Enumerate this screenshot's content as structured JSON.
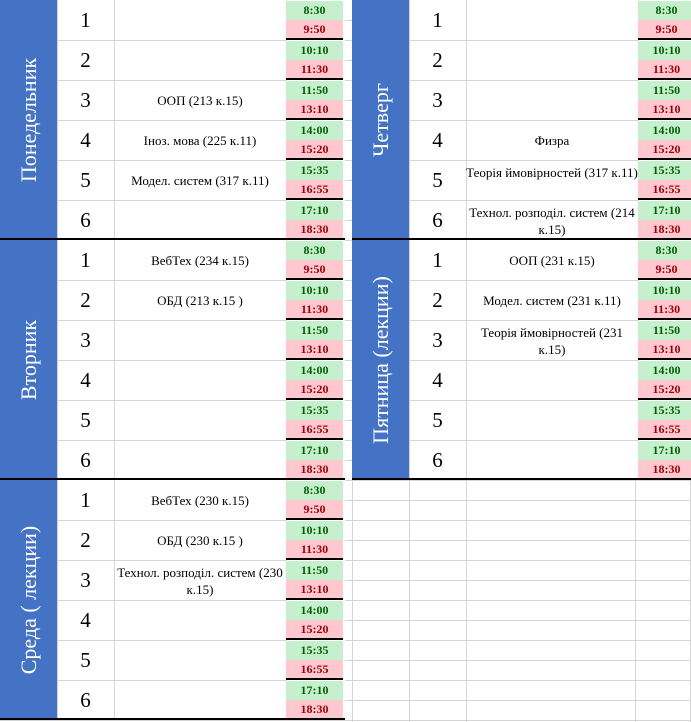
{
  "days": [
    {
      "id": "mon",
      "name": "Понедельник",
      "slots": [
        {
          "num": "1",
          "subject": "",
          "start": "8:30",
          "end": "9:50"
        },
        {
          "num": "2",
          "subject": "",
          "start": "10:10",
          "end": "11:30"
        },
        {
          "num": "3",
          "subject": "ООП (213 к.15)",
          "start": "11:50",
          "end": "13:10"
        },
        {
          "num": "4",
          "subject": "Іноз. мова (225 к.11)",
          "start": "14:00",
          "end": "15:20"
        },
        {
          "num": "5",
          "subject": "Модел. систем (317 к.11)",
          "start": "15:35",
          "end": "16:55"
        },
        {
          "num": "6",
          "subject": "",
          "start": "17:10",
          "end": "18:30"
        }
      ]
    },
    {
      "id": "tue",
      "name": "Вторник",
      "slots": [
        {
          "num": "1",
          "subject": "ВебТех (234 к.15)",
          "start": "8:30",
          "end": "9:50"
        },
        {
          "num": "2",
          "subject": "ОБД (213 к.15 )",
          "start": "10:10",
          "end": "11:30"
        },
        {
          "num": "3",
          "subject": "",
          "start": "11:50",
          "end": "13:10"
        },
        {
          "num": "4",
          "subject": "",
          "start": "14:00",
          "end": "15:20"
        },
        {
          "num": "5",
          "subject": "",
          "start": "15:35",
          "end": "16:55"
        },
        {
          "num": "6",
          "subject": "",
          "start": "17:10",
          "end": "18:30"
        }
      ]
    },
    {
      "id": "wed",
      "name": "Среда ( лекции)",
      "slots": [
        {
          "num": "1",
          "subject": "ВебТех (230 к.15)",
          "start": "8:30",
          "end": "9:50"
        },
        {
          "num": "2",
          "subject": "ОБД (230 к.15 )",
          "start": "10:10",
          "end": "11:30"
        },
        {
          "num": "3",
          "subject": "Технол. розподіл. систем (230 к.15)",
          "start": "11:50",
          "end": "13:10"
        },
        {
          "num": "4",
          "subject": "",
          "start": "14:00",
          "end": "15:20"
        },
        {
          "num": "5",
          "subject": "",
          "start": "15:35",
          "end": "16:55"
        },
        {
          "num": "6",
          "subject": "",
          "start": "17:10",
          "end": "18:30"
        }
      ]
    },
    {
      "id": "thu",
      "name": "Четверг",
      "slots": [
        {
          "num": "1",
          "subject": "",
          "start": "8:30",
          "end": "9:50"
        },
        {
          "num": "2",
          "subject": "",
          "start": "10:10",
          "end": "11:30"
        },
        {
          "num": "3",
          "subject": "",
          "start": "11:50",
          "end": "13:10"
        },
        {
          "num": "4",
          "subject": "Физра",
          "start": "14:00",
          "end": "15:20"
        },
        {
          "num": "5",
          "subject": "Теорія ймовірностей (317 к.11)",
          "start": "15:35",
          "end": "16:55"
        },
        {
          "num": "6",
          "subject": "Технол. розподіл. систем (214 к.15)",
          "start": "17:10",
          "end": "18:30"
        }
      ]
    },
    {
      "id": "fri",
      "name": "Пятница (лекции)",
      "slots": [
        {
          "num": "1",
          "subject": "ООП (231 к.15)",
          "start": "8:30",
          "end": "9:50"
        },
        {
          "num": "2",
          "subject": "Модел. систем (231 к.11)",
          "start": "10:10",
          "end": "11:30"
        },
        {
          "num": "3",
          "subject": "Теорія ймовірностей (231 к.15)",
          "start": "11:50",
          "end": "13:10"
        },
        {
          "num": "4",
          "subject": "",
          "start": "14:00",
          "end": "15:20"
        },
        {
          "num": "5",
          "subject": "",
          "start": "15:35",
          "end": "16:55"
        },
        {
          "num": "6",
          "subject": "",
          "start": "17:10",
          "end": "18:30"
        }
      ]
    }
  ],
  "colors": {
    "day_header": "#4472c4",
    "start_bg": "#c6efce",
    "start_fg": "#006100",
    "end_bg": "#ffc7ce",
    "end_fg": "#9c0006"
  }
}
